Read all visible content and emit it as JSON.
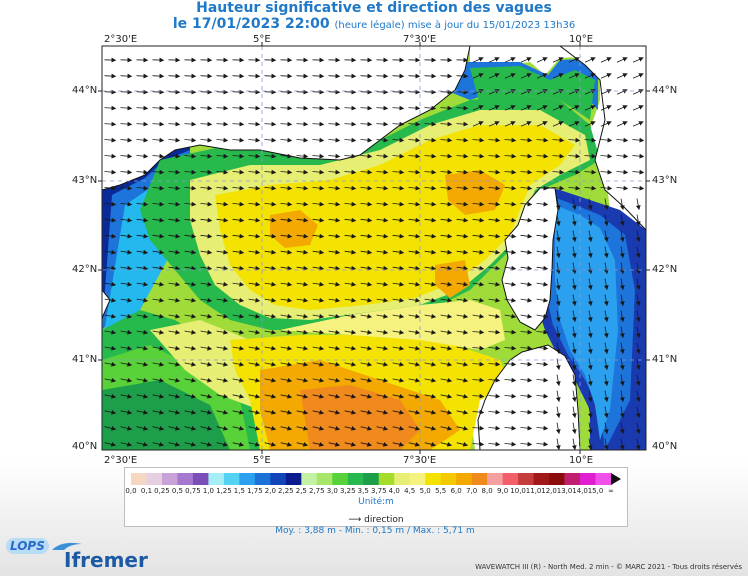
{
  "title": "Hauteur significative et direction des vagues",
  "subtitle_date": "le 17/01/2023 22:00",
  "subtitle_note": "(heure légale) mise à jour du 15/01/2023 13h36",
  "lon_labels": [
    "2°30'E",
    "5°E",
    "7°30'E",
    "10°E"
  ],
  "lat_labels": [
    "44°N",
    "43°N",
    "42°N",
    "41°N",
    "40°N"
  ],
  "legend": {
    "ticks": [
      "0,0",
      "0,1",
      "0,25",
      "0,5",
      "0,75",
      "1,0",
      "1,25",
      "1,5",
      "1,75",
      "2,0",
      "2,25",
      "2,5",
      "2,75",
      "3,0",
      "3,25",
      "3,5",
      "3,75",
      "4,0",
      "4,5",
      "5,0",
      "5,5",
      "6,0",
      "7,0",
      "8,0",
      "9,0",
      "10,0",
      "11,0",
      "12,0",
      "13,0",
      "14,0",
      "15,0",
      "∞"
    ],
    "colors": [
      "#f6d7c1",
      "#e5cfe0",
      "#c9a2d8",
      "#a678cf",
      "#7c4fb8",
      "#a6eef6",
      "#54d2f2",
      "#2aa0ef",
      "#1b73d8",
      "#1046b8",
      "#0a1c8f",
      "#c4f2a4",
      "#a6e66a",
      "#59d239",
      "#27b94c",
      "#1d9e4a",
      "#a6dc29",
      "#e6ee73",
      "#f6f27f",
      "#f4e200",
      "#f4c900",
      "#f4a900",
      "#f08a1c",
      "#f4a0a0",
      "#f25e6a",
      "#c53c3c",
      "#a01a1a",
      "#8a0c0c",
      "#c01e6e",
      "#e01ed0",
      "#f050ea"
    ],
    "unit": "Unité:m",
    "direction": "direction"
  },
  "stats": "Moy. : 3,88 m   -   Min. : 0,15 m / Max. : 5,71 m",
  "copyright": "WAVEWATCH III (R) - North Med. 2 min - © MARC 2021 - Tous droits réservés",
  "logos": {
    "lops": "LOPS",
    "ifremer": "Ifremer"
  }
}
